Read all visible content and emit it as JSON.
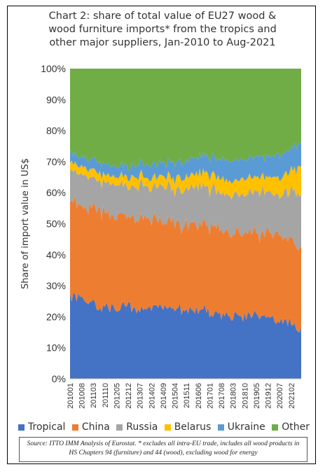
{
  "chart_data": {
    "type": "area",
    "stacked": true,
    "normalized": true,
    "title_lines": [
      "Chart 2: share of total value of EU27 wood &",
      "wood furniture imports* from the tropics and",
      "other major suppliers, Jan-2010 to Aug-2021"
    ],
    "ylabel": "Share of import value in US$",
    "xlabel": "",
    "ylim": [
      0,
      100
    ],
    "yticks": [
      "0%",
      "10%",
      "20%",
      "30%",
      "40%",
      "50%",
      "60%",
      "70%",
      "80%",
      "90%",
      "100%"
    ],
    "x_labels": [
      "201001",
      "201008",
      "201103",
      "201110",
      "201205",
      "201212",
      "201307",
      "201402",
      "201409",
      "201504",
      "201511",
      "201606",
      "201701",
      "201708",
      "201803",
      "201810",
      "201905",
      "201912",
      "202007",
      "202102"
    ],
    "grid": false,
    "legend_position": "bottom",
    "anchor_index": [
      0,
      7,
      14,
      21,
      28,
      35,
      42,
      49,
      56,
      63,
      70,
      77,
      84,
      91,
      98,
      105,
      112,
      119,
      126,
      133,
      139
    ],
    "series": [
      {
        "name": "Tropical",
        "color": "#4472C4",
        "values": [
          27.0,
          25.0,
          24.0,
          23.5,
          23.0,
          23.0,
          22.5,
          22.5,
          23.0,
          23.0,
          22.0,
          22.0,
          21.0,
          20.5,
          20.5,
          20.0,
          20.0,
          20.0,
          18.0,
          18.5,
          15.0
        ]
      },
      {
        "name": "China",
        "color": "#ED7D31",
        "values": [
          31.0,
          30.5,
          31.0,
          30.5,
          30.0,
          29.5,
          29.0,
          28.5,
          28.0,
          27.5,
          27.5,
          27.5,
          28.0,
          28.0,
          27.5,
          27.5,
          27.0,
          26.5,
          27.5,
          26.5,
          26.5
        ]
      },
      {
        "name": "Russia",
        "color": "#A5A5A5",
        "values": [
          9.5,
          10.0,
          10.0,
          9.5,
          10.0,
          9.5,
          10.5,
          10.5,
          10.5,
          11.0,
          11.5,
          12.0,
          12.5,
          12.0,
          12.5,
          12.0,
          12.5,
          13.5,
          14.0,
          15.0,
          17.5
        ]
      },
      {
        "name": "Belarus",
        "color": "#FFC000",
        "values": [
          2.5,
          2.5,
          2.5,
          2.5,
          2.5,
          3.0,
          3.0,
          3.0,
          3.5,
          3.5,
          4.0,
          4.5,
          4.5,
          4.5,
          4.5,
          5.0,
          5.0,
          5.0,
          5.5,
          6.5,
          10.0
        ]
      },
      {
        "name": "Ukraine",
        "color": "#5B9BD5",
        "values": [
          3.0,
          3.0,
          3.5,
          3.5,
          3.5,
          3.5,
          4.0,
          4.5,
          4.5,
          5.0,
          5.5,
          5.0,
          5.5,
          6.0,
          6.0,
          6.5,
          6.5,
          7.0,
          7.0,
          7.5,
          8.0
        ]
      },
      {
        "name": "Other",
        "color": "#70AD47",
        "values": [
          27.0,
          29.0,
          29.0,
          30.5,
          31.0,
          31.5,
          31.0,
          31.0,
          30.5,
          30.0,
          29.5,
          29.0,
          28.5,
          29.0,
          29.0,
          29.0,
          29.0,
          28.0,
          28.0,
          26.0,
          23.0
        ]
      }
    ]
  },
  "source_note": "Source: ITTO IMM Analysis of Eurostat. * excludes all intra-EU trade, includes all wood products in HS Chapters 94 (furniture) and 44 (wood), excluding wood for energy"
}
